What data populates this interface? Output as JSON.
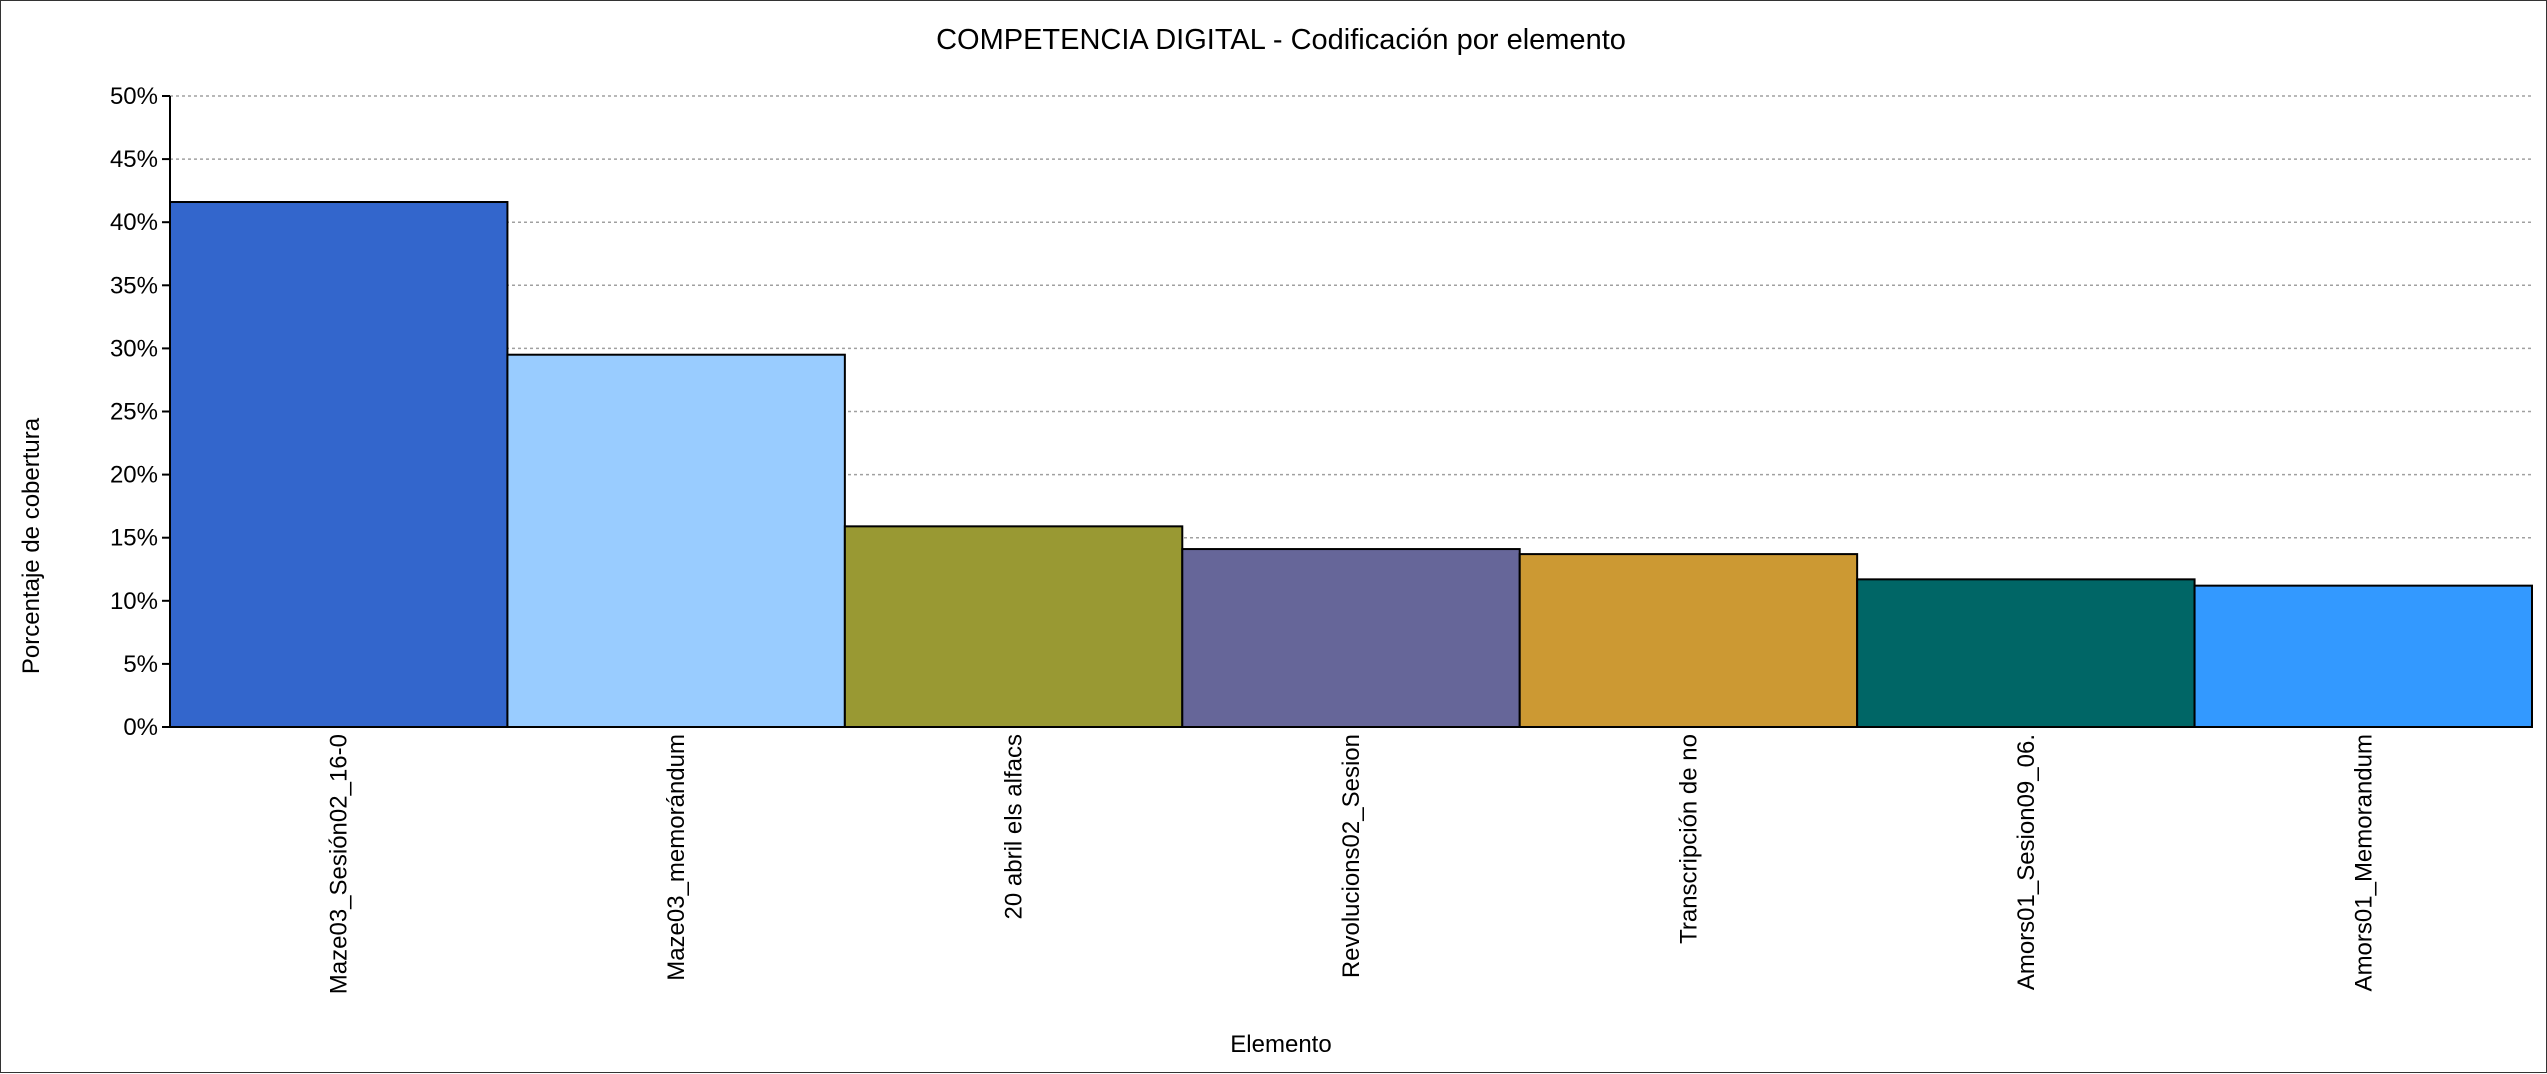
{
  "chart_data": {
    "type": "bar",
    "title": "COMPETENCIA DIGITAL - Codificación por elemento",
    "xlabel": "Elemento",
    "ylabel": "Porcentaje de cobertura",
    "ylim": [
      0,
      50
    ],
    "yticks": [
      "0%",
      "5%",
      "10%",
      "15%",
      "20%",
      "25%",
      "30%",
      "35%",
      "40%",
      "45%",
      "50%"
    ],
    "grid": true,
    "categories": [
      "Maze03_Sesión02_16-0",
      "Maze03_memorándum",
      "20 abril els alfacs",
      "Revolucions02_Sesion",
      "Transcripción de no",
      "Amors01_Sesion09_06.",
      "Amors01_Memorandum"
    ],
    "values": [
      41.6,
      29.5,
      15.9,
      14.1,
      13.7,
      11.7,
      11.2
    ],
    "colors": [
      "#3366cc",
      "#99ccff",
      "#999933",
      "#666699",
      "#cc9933",
      "#006666",
      "#3399ff"
    ]
  }
}
